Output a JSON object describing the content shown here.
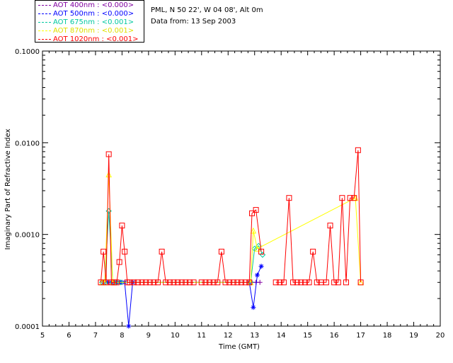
{
  "header": {
    "location": "PML, N 50 22', W 04 08', Alt 0m",
    "date_line": "Data from: 13 Sep 2003"
  },
  "chart_data": {
    "type": "line",
    "xlabel": "Time (GMT)",
    "ylabel": "Imaginary Part of Refractive Index",
    "xlim": [
      5,
      20
    ],
    "ylim": [
      0.0001,
      0.1
    ],
    "yscale": "log",
    "x_ticks": [
      "5",
      "6",
      "7",
      "8",
      "9",
      "10",
      "11",
      "12",
      "13",
      "14",
      "15",
      "16",
      "17",
      "18",
      "19",
      "20"
    ],
    "y_ticks": [
      "0.0001",
      "0.0010",
      "0.0100",
      "0.1000"
    ],
    "y_tick_values": [
      0.0001,
      0.001,
      0.01,
      0.1
    ],
    "grid": false,
    "legend_position": "top-left, above plot",
    "series": [
      {
        "name": "AOT  400nm : <0.000>",
        "color": "#8000a0",
        "marker": "plus",
        "x": [
          7.45,
          7.6,
          7.8,
          8.0,
          8.3,
          8.5,
          12.9,
          13.05,
          13.2
        ],
        "y": [
          0.0003,
          0.0003,
          0.0003,
          0.0003,
          0.0003,
          0.0003,
          0.0003,
          0.0003,
          0.0003
        ]
      },
      {
        "name": "AOT  500nm : <0.000>",
        "color": "#0000ff",
        "marker": "star",
        "x": [
          7.3,
          7.45,
          7.6,
          7.8,
          7.95,
          8.1,
          8.25,
          8.4,
          12.8,
          12.95,
          13.1,
          13.25
        ],
        "y": [
          0.0003,
          0.0003,
          0.0003,
          0.0003,
          0.0003,
          0.0003,
          0.0001,
          0.0003,
          0.0003,
          0.00016,
          0.00036,
          0.00045
        ]
      },
      {
        "name": "AOT  675nm : <0.001>",
        "color": "#00c8a0",
        "marker": "diamond",
        "x": [
          7.25,
          7.35,
          7.5,
          7.65,
          7.8,
          7.95,
          12.85,
          13.0,
          13.15,
          13.3
        ],
        "y": [
          0.0003,
          0.0003,
          0.0018,
          0.0003,
          0.0003,
          0.0003,
          0.0003,
          0.0007,
          0.00075,
          0.0006
        ]
      },
      {
        "name": "AOT  870nm : <0.001>",
        "color": "#ffff00",
        "marker": "triangle",
        "x": [
          7.25,
          7.35,
          7.5,
          7.65,
          12.85,
          12.95,
          13.1,
          16.8,
          17.0
        ],
        "y": [
          0.0003,
          0.0003,
          0.0045,
          0.0003,
          0.0003,
          0.0011,
          0.0007,
          0.0025,
          0.0003
        ]
      },
      {
        "name": "AOT 1020nm : <0.001>",
        "color": "#ff0000",
        "marker": "square",
        "x": [
          7.2,
          7.3,
          7.4,
          7.5,
          7.6,
          7.7,
          7.8,
          7.9,
          8.0,
          8.1,
          8.2,
          8.3,
          8.45,
          8.6,
          8.75,
          8.9,
          9.05,
          9.2,
          9.35,
          9.5,
          9.65,
          9.8,
          9.95,
          10.1,
          10.25,
          10.4,
          10.55,
          10.7,
          11.0,
          11.15,
          11.3,
          11.45,
          11.6,
          11.75,
          11.9,
          12.05,
          12.2,
          12.35,
          12.5,
          12.65,
          12.8,
          12.9,
          13.05,
          13.25,
          13.8,
          13.95,
          14.1,
          14.3,
          14.45,
          14.6,
          14.75,
          14.9,
          15.05,
          15.2,
          15.35,
          15.5,
          15.7,
          15.85,
          16.0,
          16.15,
          16.3,
          16.45,
          16.6,
          16.75,
          16.9,
          17.0
        ],
        "y": [
          0.0003,
          0.00065,
          0.0003,
          0.0075,
          0.0003,
          0.0003,
          0.0003,
          0.0005,
          0.00125,
          0.00065,
          0.0003,
          0.0003,
          0.0003,
          0.0003,
          0.0003,
          0.0003,
          0.0003,
          0.0003,
          0.0003,
          0.00065,
          0.0003,
          0.0003,
          0.0003,
          0.0003,
          0.0003,
          0.0003,
          0.0003,
          0.0003,
          0.0003,
          0.0003,
          0.0003,
          0.0003,
          0.0003,
          0.00065,
          0.0003,
          0.0003,
          0.0003,
          0.0003,
          0.0003,
          0.0003,
          0.0003,
          0.0017,
          0.00185,
          0.00065,
          0.0003,
          0.0003,
          0.0003,
          0.0025,
          0.0003,
          0.0003,
          0.0003,
          0.0003,
          0.0003,
          0.00065,
          0.0003,
          0.0003,
          0.0003,
          0.00125,
          0.0003,
          0.0003,
          0.0025,
          0.0003,
          0.0025,
          0.0025,
          0.0083,
          0.0003
        ],
        "gaps_after_x": [
          10.7,
          13.25
        ]
      }
    ]
  }
}
